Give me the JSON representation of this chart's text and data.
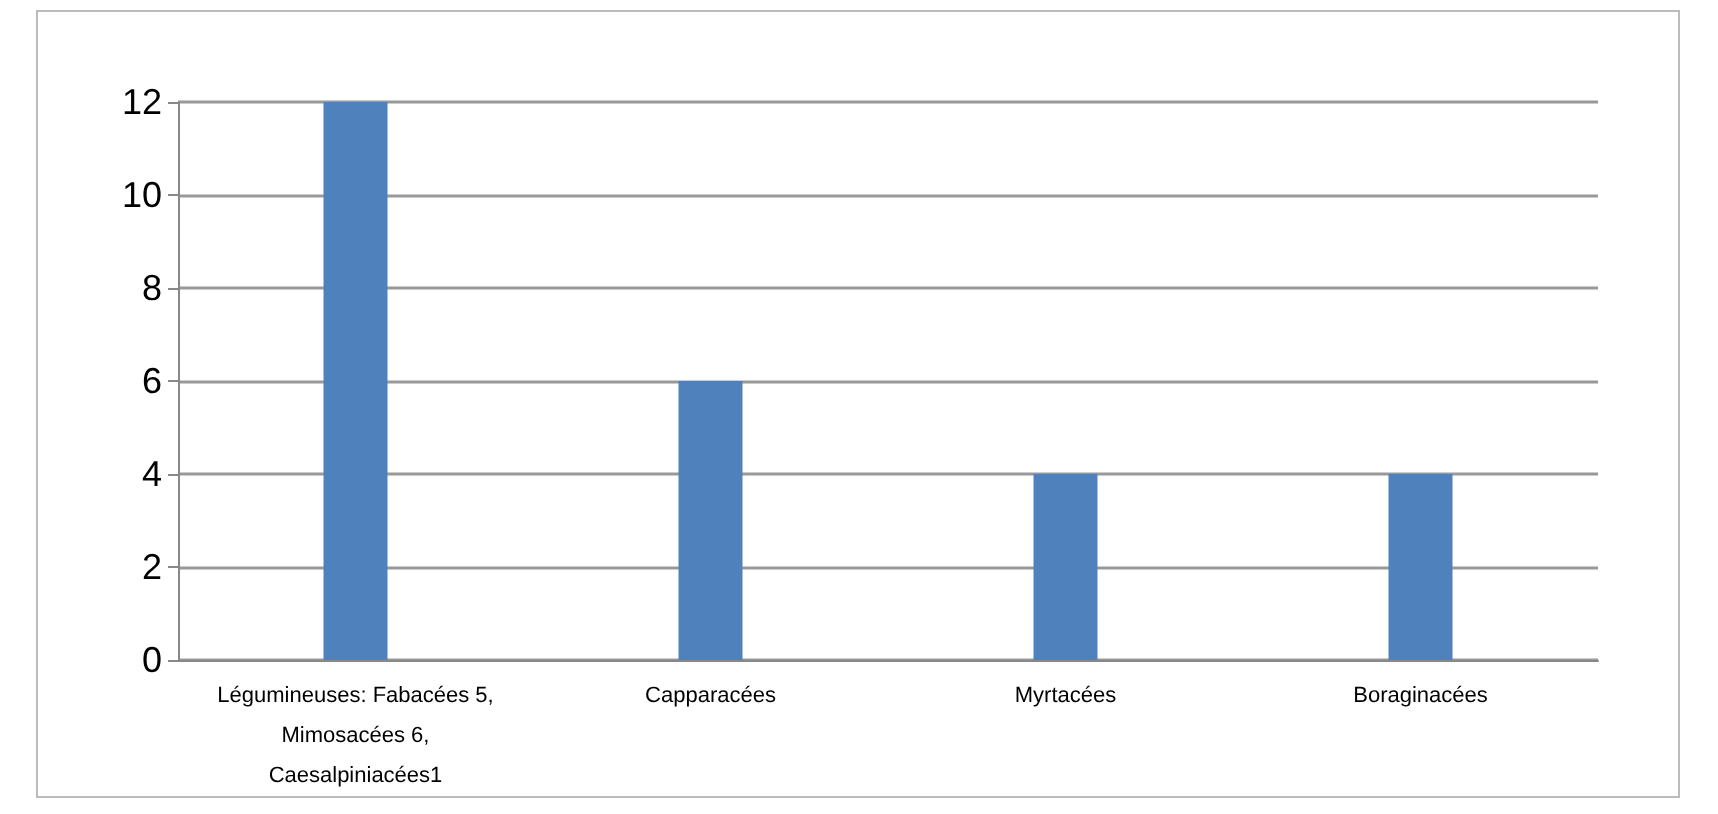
{
  "chart_data": {
    "type": "bar",
    "categories": [
      "Légumineuses: Fabacées 5, Mimosacées 6, Caesalpiniacées1",
      "Capparacées",
      "Myrtacées",
      "Boraginacées"
    ],
    "values": [
      12,
      6,
      4,
      4
    ],
    "color": "#4f81bd",
    "ylim": [
      0,
      12
    ],
    "yticks": [
      0,
      2,
      4,
      6,
      8,
      10,
      12
    ],
    "grid": "y"
  }
}
